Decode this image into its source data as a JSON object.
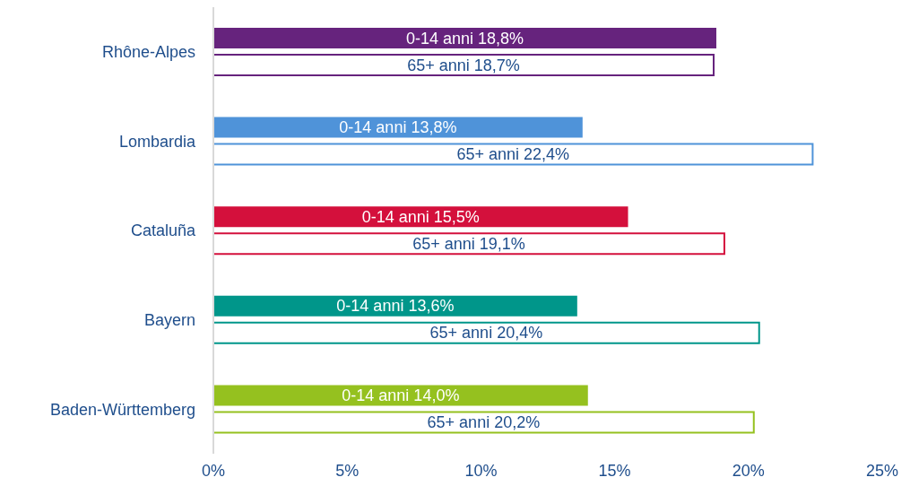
{
  "chart_data": {
    "type": "bar",
    "orientation": "horizontal",
    "categories": [
      "Rhône-Alpes",
      "Lombardia",
      "Cataluña",
      "Bayern",
      "Baden-Württemberg"
    ],
    "series": [
      {
        "colors": [
          "#66237d",
          "#4f93d9",
          "#d4103c",
          "#00968a",
          "#95c11f"
        ],
        "values": [
          18.8,
          13.8,
          15.5,
          13.6,
          14.0
        ],
        "value_labels": [
          "0-14 anni 18,8%",
          "0-14 anni 13,8%",
          "0-14 anni 15,5%",
          "0-14 anni 13,6%",
          "0-14 anni 14,0%"
        ]
      },
      {
        "colors": [
          "#66237d",
          "#4f93d9",
          "#d4103c",
          "#00968a",
          "#95c11f"
        ],
        "values": [
          18.7,
          22.4,
          19.1,
          20.4,
          20.2
        ],
        "value_labels": [
          "65+ anni 18,7%",
          "65+ anni 22,4%",
          "65+ anni 19,1%",
          "65+ anni 20,4%",
          "65+ anni 20,2%"
        ]
      }
    ],
    "xlim": [
      0,
      25
    ],
    "xticks": [
      {
        "value": 0,
        "label": "0%"
      },
      {
        "value": 5,
        "label": "5%"
      },
      {
        "value": 10,
        "label": "10%"
      },
      {
        "value": 15,
        "label": "15%"
      },
      {
        "value": 20,
        "label": "20%"
      },
      {
        "value": 25,
        "label": "25%"
      }
    ]
  }
}
